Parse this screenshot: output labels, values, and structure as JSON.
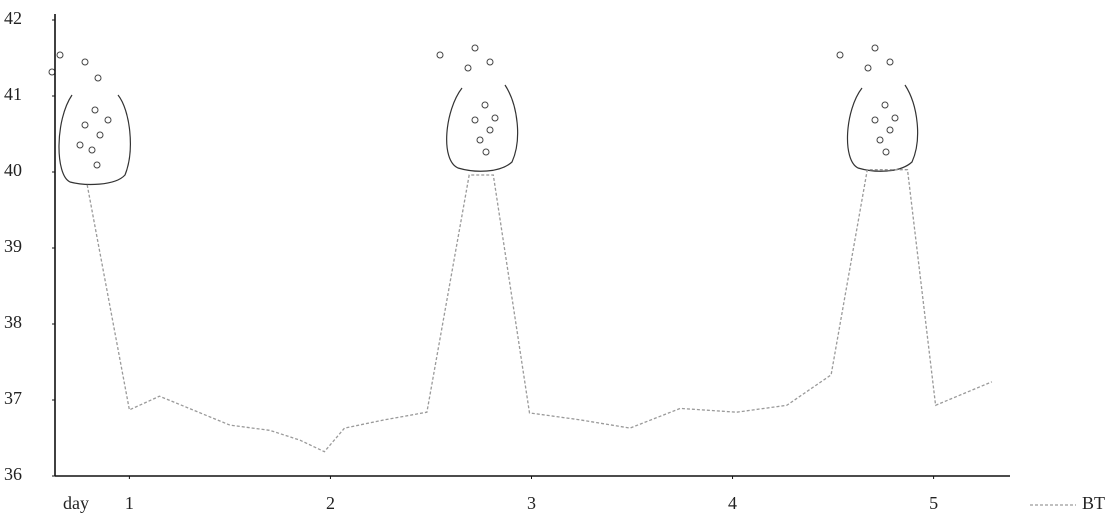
{
  "chart_data": {
    "type": "line",
    "x_label": "day",
    "xlim": [
      0.63,
      5.38
    ],
    "xticks": [
      1,
      2,
      3,
      4,
      5
    ],
    "ylim": [
      36,
      42
    ],
    "yticks": [
      36,
      37,
      38,
      39,
      40,
      41,
      42
    ],
    "legend": "bottom-right",
    "series": [
      {
        "name": "BT",
        "color": "#9a9a9a",
        "x": [
          0.79,
          1.0,
          1.15,
          1.5,
          1.7,
          1.85,
          1.97,
          2.07,
          2.27,
          2.48,
          2.69,
          2.81,
          2.99,
          3.24,
          3.49,
          3.74,
          4.02,
          4.27,
          4.49,
          4.67,
          4.87,
          5.01,
          5.29
        ],
        "values": [
          39.83,
          36.87,
          37.05,
          36.67,
          36.6,
          36.47,
          36.32,
          36.63,
          36.74,
          36.84,
          39.96,
          39.96,
          36.83,
          36.74,
          36.63,
          36.89,
          36.84,
          36.93,
          37.33,
          40.03,
          40.03,
          36.93,
          37.24
        ]
      }
    ]
  }
}
